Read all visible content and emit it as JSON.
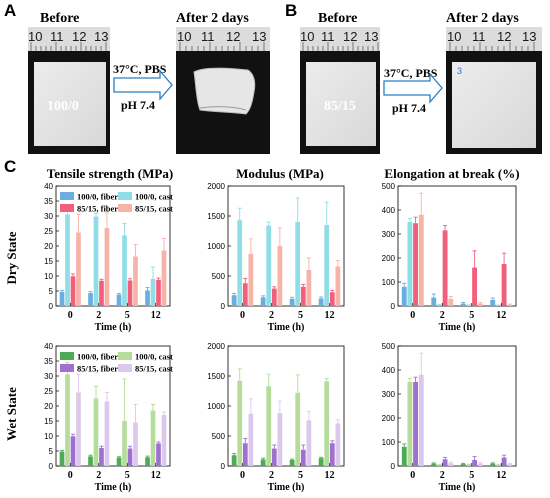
{
  "panel_a": {
    "letter": "A",
    "before_caption": "Before",
    "after_caption": "After 2 days",
    "ruler_labels": [
      "10",
      "11",
      "12",
      "13"
    ],
    "sample_label": "100/0",
    "arrow_top": "37°C, PBS",
    "arrow_bottom": "pH 7.4"
  },
  "panel_b": {
    "letter": "B",
    "before_caption": "Before",
    "after_caption": "After 2 days",
    "ruler_labels": [
      "10",
      "11",
      "12",
      "13"
    ],
    "sample_label": "85/15",
    "arrow_top": "37°C, PBS",
    "arrow_bottom": "pH 7.4",
    "after_mark": "3"
  },
  "panel_c": {
    "letter": "C",
    "column_titles": [
      "Tensile strength (MPa)",
      "Modulus (MPa)",
      "Elongation at break (%)"
    ],
    "row_titles": [
      "Dry State",
      "Wet State"
    ],
    "xlabel": "Time (h)"
  },
  "colors": {
    "dry": {
      "fiber_100": "#6aaee0",
      "fiber_85": "#f25f7a",
      "cast_100": "#8fdde6",
      "cast_85": "#f7b3a8"
    },
    "wet": {
      "fiber_100": "#4daa57",
      "fiber_85": "#a070d0",
      "cast_100": "#b5dc9a",
      "cast_85": "#dcc8ec"
    }
  },
  "chart_data": [
    {
      "type": "bar",
      "row": "Dry State",
      "col": "Tensile strength (MPa)",
      "categories": [
        "0",
        "2",
        "5",
        "12"
      ],
      "xlabel": "Time (h)",
      "ylim": [
        0,
        40
      ],
      "yticks": [
        0,
        5,
        10,
        15,
        20,
        25,
        30,
        35,
        40
      ],
      "legend": "top",
      "legend_labels": [
        "100/0, fiber",
        "85/15, fiber",
        "100/0, cast",
        "85/15, cast"
      ],
      "series": [
        {
          "name": "100/0, fiber",
          "values": [
            4.7,
            4.3,
            3.8,
            5.2
          ],
          "err": [
            0.5,
            0.5,
            0.4,
            1.0
          ]
        },
        {
          "name": "100/0, cast",
          "values": [
            30.5,
            29.8,
            23.5,
            9.0
          ],
          "err": [
            3.0,
            1.0,
            4.0,
            4.0
          ]
        },
        {
          "name": "85/15, fiber",
          "values": [
            9.9,
            8.4,
            8.5,
            8.7
          ],
          "err": [
            0.8,
            0.5,
            0.6,
            0.6
          ]
        },
        {
          "name": "85/15, cast",
          "values": [
            24.5,
            26.0,
            16.5,
            18.5
          ],
          "err": [
            6.0,
            5.0,
            4.0,
            4.0
          ]
        }
      ]
    },
    {
      "type": "bar",
      "row": "Dry State",
      "col": "Modulus (MPa)",
      "categories": [
        "0",
        "2",
        "5",
        "12"
      ],
      "xlabel": "Time (h)",
      "ylim": [
        0,
        2000
      ],
      "yticks": [
        0,
        500,
        1000,
        1500,
        2000
      ],
      "series": [
        {
          "name": "100/0, fiber",
          "values": [
            180,
            145,
            120,
            125
          ],
          "err": [
            30,
            25,
            25,
            25
          ]
        },
        {
          "name": "100/0, cast",
          "values": [
            1430,
            1340,
            1400,
            1350
          ],
          "err": [
            200,
            60,
            400,
            380
          ]
        },
        {
          "name": "85/15, fiber",
          "values": [
            380,
            290,
            320,
            230
          ],
          "err": [
            80,
            30,
            40,
            30
          ]
        },
        {
          "name": "85/15, cast",
          "values": [
            870,
            1000,
            600,
            660
          ],
          "err": [
            250,
            300,
            200,
            100
          ]
        }
      ]
    },
    {
      "type": "bar",
      "row": "Dry State",
      "col": "Elongation at break (%)",
      "categories": [
        "0",
        "2",
        "5",
        "12"
      ],
      "xlabel": "Time (h)",
      "ylim": [
        0,
        500
      ],
      "yticks": [
        0,
        100,
        200,
        300,
        400,
        500
      ],
      "series": [
        {
          "name": "100/0, fiber",
          "values": [
            80,
            35,
            10,
            25
          ],
          "err": [
            15,
            15,
            5,
            8
          ]
        },
        {
          "name": "100/0, cast",
          "values": [
            350,
            5,
            3,
            2
          ],
          "err": [
            15,
            2,
            2,
            2
          ]
        },
        {
          "name": "85/15, fiber",
          "values": [
            345,
            315,
            160,
            175
          ],
          "err": [
            25,
            20,
            70,
            45
          ]
        },
        {
          "name": "85/15, cast",
          "values": [
            380,
            30,
            10,
            5
          ],
          "err": [
            90,
            10,
            5,
            3
          ]
        }
      ]
    },
    {
      "type": "bar",
      "row": "Wet State",
      "col": "Tensile strength (MPa)",
      "categories": [
        "0",
        "2",
        "5",
        "12"
      ],
      "xlabel": "Time (h)",
      "ylim": [
        0,
        40
      ],
      "yticks": [
        0,
        5,
        10,
        15,
        20,
        25,
        30,
        35,
        40
      ],
      "legend": "top",
      "legend_labels": [
        "100/0, fiber",
        "85/15, fiber",
        "100/0, cast",
        "85/15, cast"
      ],
      "series": [
        {
          "name": "100/0, fiber",
          "values": [
            4.8,
            3.2,
            2.8,
            2.9
          ],
          "err": [
            0.4,
            0.4,
            0.3,
            0.4
          ]
        },
        {
          "name": "100/0, cast",
          "values": [
            30.5,
            22.5,
            15.0,
            18.5
          ],
          "err": [
            4.0,
            4.0,
            14.0,
            2.0
          ]
        },
        {
          "name": "85/15, fiber",
          "values": [
            9.9,
            6.0,
            5.8,
            7.5
          ],
          "err": [
            0.7,
            0.6,
            0.8,
            0.5
          ]
        },
        {
          "name": "85/15, cast",
          "values": [
            24.5,
            21.5,
            14.5,
            17.0
          ],
          "err": [
            6.0,
            3.0,
            6.0,
            1.0
          ]
        }
      ]
    },
    {
      "type": "bar",
      "row": "Wet State",
      "col": "Modulus (MPa)",
      "categories": [
        "0",
        "2",
        "5",
        "12"
      ],
      "xlabel": "Time (h)",
      "ylim": [
        0,
        2000
      ],
      "yticks": [
        0,
        500,
        1000,
        1500,
        2000
      ],
      "series": [
        {
          "name": "100/0, fiber",
          "values": [
            180,
            110,
            100,
            130
          ],
          "err": [
            30,
            20,
            15,
            15
          ]
        },
        {
          "name": "100/0, cast",
          "values": [
            1420,
            1330,
            1220,
            1410
          ],
          "err": [
            200,
            200,
            300,
            50
          ]
        },
        {
          "name": "85/15, fiber",
          "values": [
            380,
            290,
            270,
            380
          ],
          "err": [
            80,
            60,
            80,
            40
          ]
        },
        {
          "name": "85/15, cast",
          "values": [
            870,
            880,
            760,
            710
          ],
          "err": [
            250,
            200,
            150,
            60
          ]
        }
      ]
    },
    {
      "type": "bar",
      "row": "Wet State",
      "col": "Elongation at break (%)",
      "categories": [
        "0",
        "2",
        "5",
        "12"
      ],
      "xlabel": "Time (h)",
      "ylim": [
        0,
        500
      ],
      "yticks": [
        0,
        100,
        200,
        300,
        400,
        500
      ],
      "series": [
        {
          "name": "100/0, fiber",
          "values": [
            80,
            10,
            8,
            10
          ],
          "err": [
            12,
            3,
            3,
            3
          ]
        },
        {
          "name": "100/0, cast",
          "values": [
            350,
            5,
            5,
            5
          ],
          "err": [
            15,
            2,
            2,
            2
          ]
        },
        {
          "name": "85/15, fiber",
          "values": [
            350,
            28,
            25,
            35
          ],
          "err": [
            20,
            8,
            15,
            10
          ]
        },
        {
          "name": "85/15, cast",
          "values": [
            380,
            12,
            10,
            8
          ],
          "err": [
            90,
            4,
            4,
            3
          ]
        }
      ]
    }
  ]
}
